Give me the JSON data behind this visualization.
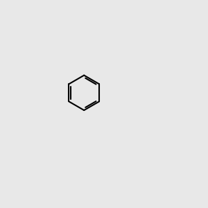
{
  "bg_color": "#e8e8e8",
  "bond_color": "#000000",
  "n_color": "#0000cc",
  "o_color": "#cc0000",
  "h_color": "#888888",
  "lw": 1.5,
  "ring_lw": 1.5
}
